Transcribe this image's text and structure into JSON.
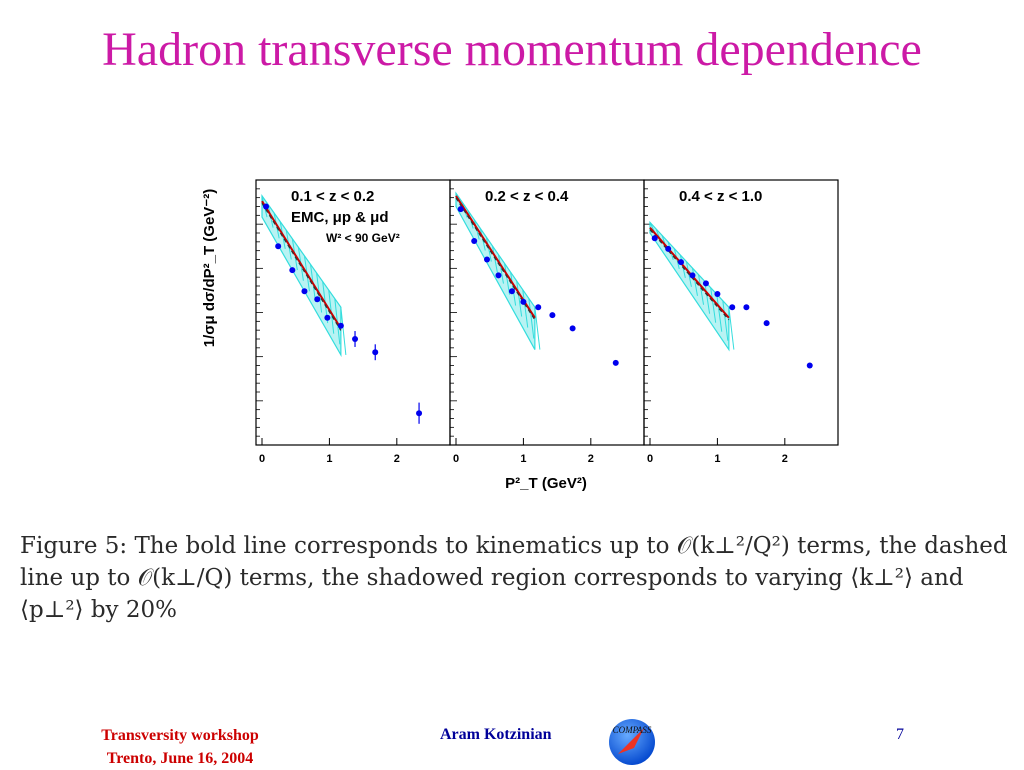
{
  "slide": {
    "title": "Hadron transverse momentum dependence",
    "footer_left_line1": "Transversity workshop",
    "footer_left_line2": "Trento, June 16, 2004",
    "footer_center": "Aram Kotzinian",
    "page_number": "7",
    "logo_text": "COMPASS"
  },
  "caption": {
    "line1": "Figure 5:  The bold line corresponds to kinematics up to 𝒪(k⊥²/Q²) terms, the dashed",
    "line2": "line up to 𝒪(k⊥/Q) terms, the shadowed region corresponds to varying ⟨k⊥²⟩ and",
    "line3": "⟨p⊥²⟩ by 20%"
  },
  "chart_data": [
    {
      "type": "scatter",
      "title": "0.1 < z < 0.2",
      "annotation": [
        "EMC, μp & μd",
        "W² <  90 GeV²"
      ],
      "xlabel": "P²_T (GeV²)",
      "ylabel": "1/σμ dσ/dP²_T (GeV⁻²)",
      "xlim": [
        0,
        2.7
      ],
      "x_ticks": [
        "0",
        "1",
        "2"
      ],
      "y_scale": "log",
      "points": [
        {
          "x": 0.06,
          "y": 0.9
        },
        {
          "x": 0.24,
          "y": 0.75
        },
        {
          "x": 0.45,
          "y": 0.66
        },
        {
          "x": 0.63,
          "y": 0.58
        },
        {
          "x": 0.82,
          "y": 0.55
        },
        {
          "x": 0.97,
          "y": 0.48
        },
        {
          "x": 1.17,
          "y": 0.45
        },
        {
          "x": 1.38,
          "y": 0.4,
          "err": 0.03
        },
        {
          "x": 1.68,
          "y": 0.35,
          "err": 0.03
        },
        {
          "x": 2.33,
          "y": 0.12,
          "err": 0.04
        }
      ],
      "line": [
        {
          "x": 0.0,
          "y": 0.92
        },
        {
          "x": 1.17,
          "y": 0.44
        }
      ],
      "band_low": [
        {
          "x": 0.0,
          "y": 0.86
        },
        {
          "x": 1.17,
          "y": 0.34
        }
      ],
      "band_high": [
        {
          "x": 0.0,
          "y": 0.94
        },
        {
          "x": 1.17,
          "y": 0.52
        }
      ]
    },
    {
      "type": "scatter",
      "title": "0.2 < z < 0.4",
      "xlim": [
        0,
        2.7
      ],
      "x_ticks": [
        "0",
        "1",
        "2"
      ],
      "y_scale": "log",
      "points": [
        {
          "x": 0.07,
          "y": 0.89
        },
        {
          "x": 0.27,
          "y": 0.77
        },
        {
          "x": 0.46,
          "y": 0.7
        },
        {
          "x": 0.63,
          "y": 0.64
        },
        {
          "x": 0.83,
          "y": 0.58
        },
        {
          "x": 1.0,
          "y": 0.54
        },
        {
          "x": 1.22,
          "y": 0.52
        },
        {
          "x": 1.43,
          "y": 0.49
        },
        {
          "x": 1.73,
          "y": 0.44
        },
        {
          "x": 2.37,
          "y": 0.31
        }
      ],
      "line": [
        {
          "x": 0.0,
          "y": 0.94
        },
        {
          "x": 1.17,
          "y": 0.48
        }
      ],
      "band_low": [
        {
          "x": 0.0,
          "y": 0.9
        },
        {
          "x": 1.17,
          "y": 0.36
        }
      ],
      "band_high": [
        {
          "x": 0.0,
          "y": 0.95
        },
        {
          "x": 1.17,
          "y": 0.52
        }
      ]
    },
    {
      "type": "scatter",
      "title": "0.4 < z < 1.0",
      "xlim": [
        0,
        2.7
      ],
      "x_ticks": [
        "0",
        "1",
        "2"
      ],
      "y_scale": "log",
      "points": [
        {
          "x": 0.07,
          "y": 0.78
        },
        {
          "x": 0.27,
          "y": 0.74
        },
        {
          "x": 0.46,
          "y": 0.69
        },
        {
          "x": 0.63,
          "y": 0.64
        },
        {
          "x": 0.83,
          "y": 0.61
        },
        {
          "x": 1.0,
          "y": 0.57
        },
        {
          "x": 1.22,
          "y": 0.52
        },
        {
          "x": 1.43,
          "y": 0.52
        },
        {
          "x": 1.73,
          "y": 0.46
        },
        {
          "x": 2.37,
          "y": 0.3
        }
      ],
      "line": [
        {
          "x": 0.0,
          "y": 0.82
        },
        {
          "x": 1.17,
          "y": 0.48
        }
      ],
      "band_low": [
        {
          "x": 0.0,
          "y": 0.8
        },
        {
          "x": 1.17,
          "y": 0.36
        }
      ],
      "band_high": [
        {
          "x": 0.0,
          "y": 0.84
        },
        {
          "x": 1.17,
          "y": 0.52
        }
      ]
    }
  ],
  "colors": {
    "title": "#cc1aa6",
    "points": "#0000ee",
    "band": "#33dddd",
    "line": "#cc0000",
    "dashed": "#333333",
    "footer_left": "#cc0000",
    "footer_center": "#000099"
  }
}
